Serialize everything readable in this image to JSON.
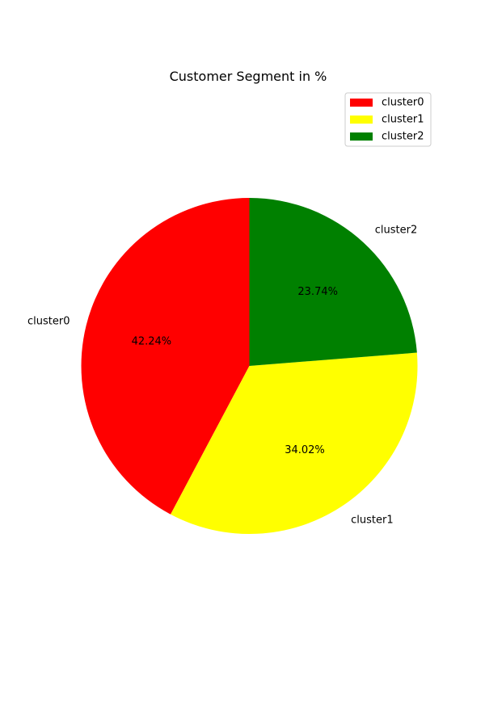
{
  "chart_data": {
    "type": "pie",
    "title": "Customer Segment in %",
    "categories": [
      "cluster0",
      "cluster1",
      "cluster2"
    ],
    "values": [
      42.24,
      34.02,
      23.74
    ],
    "value_labels": [
      "42.24%",
      "34.02%",
      "23.74%"
    ],
    "colors": [
      "#ff0000",
      "#ffff00",
      "#008000"
    ],
    "start_angle_deg": 90,
    "direction": "counterclockwise",
    "legend": {
      "placement": "top-right",
      "entries": [
        "cluster0",
        "cluster1",
        "cluster2"
      ]
    }
  }
}
